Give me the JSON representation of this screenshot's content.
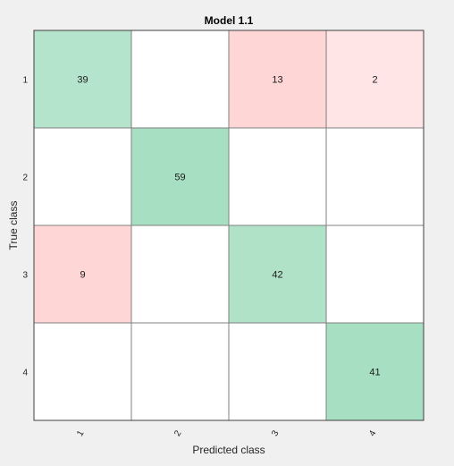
{
  "chart_data": {
    "type": "heatmap",
    "title": "Model 1.1",
    "xlabel": "Predicted class",
    "ylabel": "True class",
    "x_categories": [
      "1",
      "2",
      "3",
      "4"
    ],
    "y_categories": [
      "1",
      "2",
      "3",
      "4"
    ],
    "matrix": [
      [
        39,
        0,
        13,
        2
      ],
      [
        0,
        59,
        0,
        0
      ],
      [
        9,
        0,
        42,
        0
      ],
      [
        0,
        0,
        0,
        41
      ]
    ],
    "hide_zero_values": true,
    "colors": {
      "diagonal_base": "#3cb878",
      "offdiagonal_base": "#ff6e6e",
      "empty": "#ffffff",
      "grid": "#808080",
      "background": "#f0f0f0"
    }
  }
}
